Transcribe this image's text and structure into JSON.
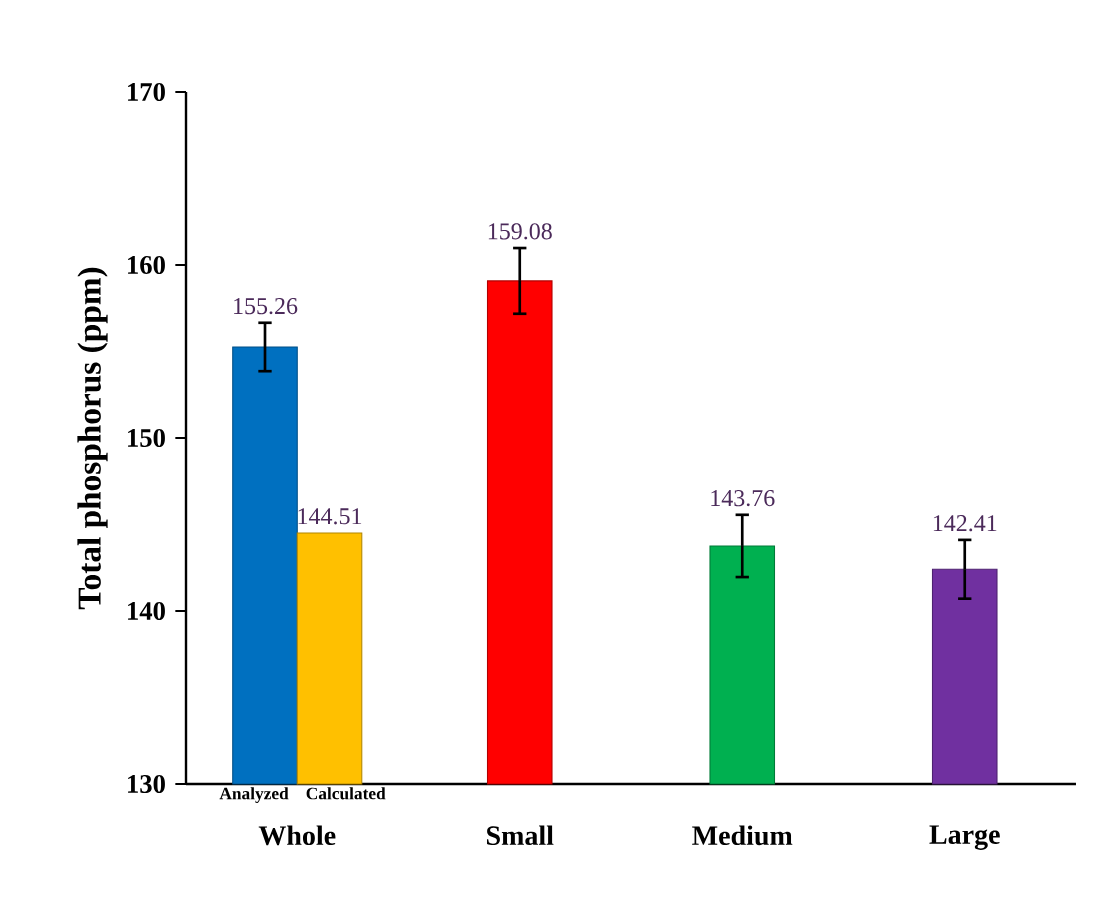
{
  "chart_data": {
    "type": "bar",
    "ylabel": "Total phosphorus (ppm)",
    "categories": [
      "Whole",
      "Small",
      "Medium",
      "Large"
    ],
    "series": [
      {
        "name": "Analyzed",
        "colors": [
          "#0070c0",
          "#ff0000",
          "#00b050",
          "#7030a0"
        ],
        "values": [
          155.26,
          159.08,
          143.76,
          142.41
        ],
        "errors": [
          1.4,
          1.9,
          1.8,
          1.7
        ]
      },
      {
        "name": "Calculated",
        "color": "#ffc000",
        "values": [
          144.51,
          null,
          null,
          null
        ]
      }
    ],
    "ylim": [
      130,
      170
    ],
    "yticks": [
      130,
      140,
      150,
      160,
      170
    ],
    "data_labels": true,
    "grid": false
  }
}
